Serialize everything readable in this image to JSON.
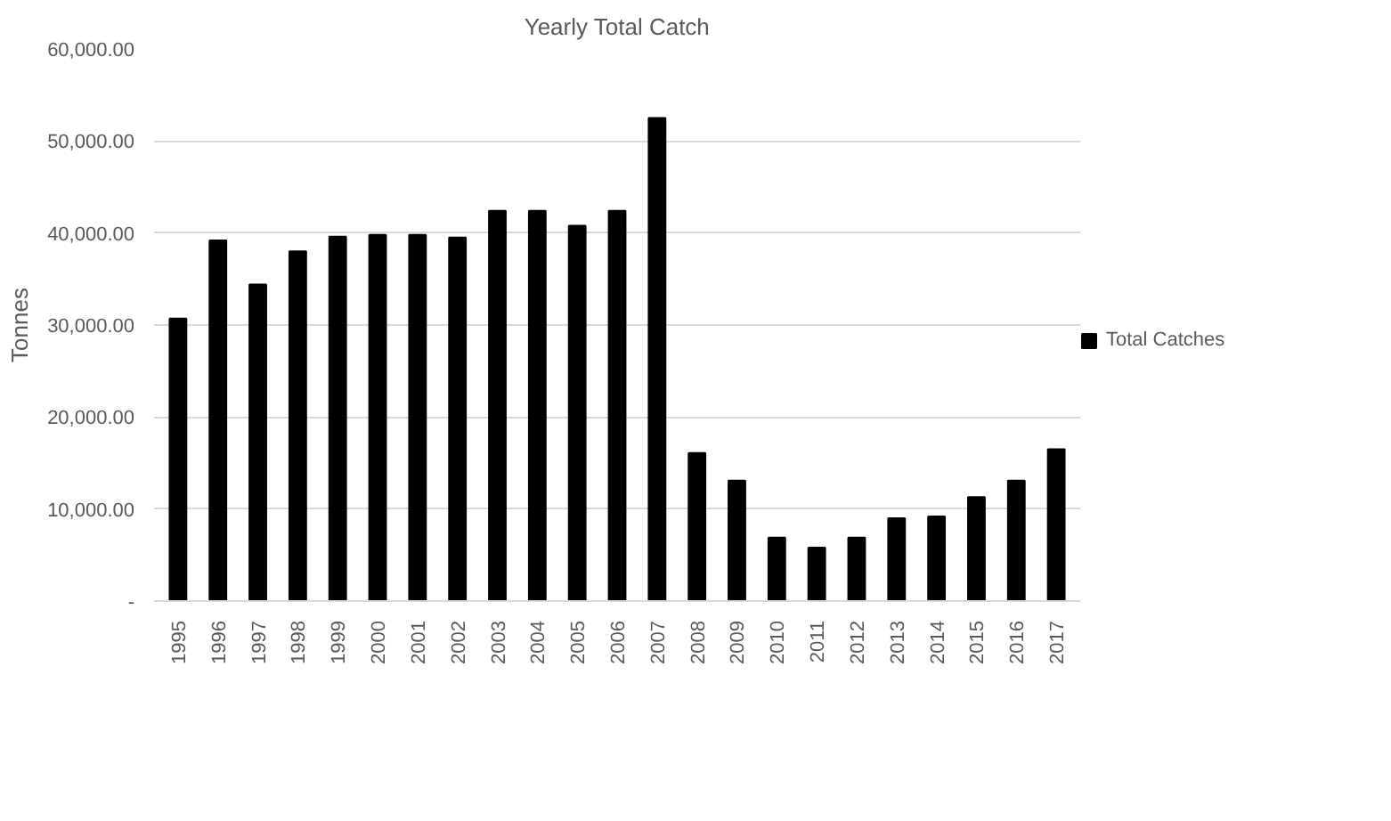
{
  "chart_data": {
    "type": "bar",
    "title": "Yearly Total Catch",
    "ylabel": "Tonnes",
    "categories": [
      "1995",
      "1996",
      "1997",
      "1998",
      "1999",
      "2000",
      "2001",
      "2002",
      "2003",
      "2004",
      "2005",
      "2006",
      "2007",
      "2008",
      "2009",
      "2010",
      "2011",
      "2012",
      "2013",
      "2014",
      "2015",
      "2016",
      "2017"
    ],
    "series": [
      {
        "name": "Total Catches",
        "color": "#000000",
        "values": [
          30700,
          39200,
          34400,
          38000,
          39600,
          39800,
          39800,
          39500,
          42400,
          42400,
          40800,
          42400,
          52500,
          16100,
          13100,
          6900,
          5800,
          6900,
          9000,
          9200,
          11300,
          13100,
          16500
        ]
      }
    ],
    "ylim": [
      0,
      60000
    ],
    "yticks": [
      {
        "value": 0,
        "label": "-"
      },
      {
        "value": 10000,
        "label": "10,000.00"
      },
      {
        "value": 20000,
        "label": "20,000.00"
      },
      {
        "value": 30000,
        "label": "30,000.00"
      },
      {
        "value": 40000,
        "label": "40,000.00"
      },
      {
        "value": 50000,
        "label": "50,000.00"
      },
      {
        "value": 60000,
        "label": "60,000.00"
      }
    ],
    "grid": "y",
    "legend": "right"
  }
}
